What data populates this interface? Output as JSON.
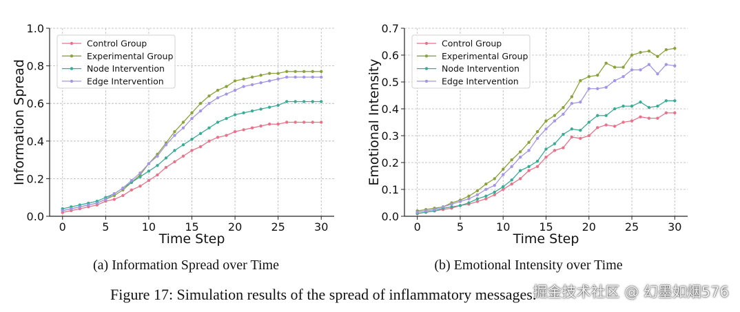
{
  "figure_caption": "Figure 17: Simulation results of the spread of inflammatory messages.",
  "subcaptions": [
    "(a) Information Spread over Time",
    "(b) Emotional Intensity over Time"
  ],
  "watermark": "掘金技术社区 @ 幻墨如烟576",
  "colors": {
    "control": "#e8728a",
    "experimental": "#8aa339",
    "node": "#3aab95",
    "edge": "#a595e6",
    "grid": "#b5b5b5",
    "axis": "#222222"
  },
  "chart_data": [
    {
      "type": "line",
      "title": "",
      "xlabel": "Time Step",
      "ylabel": "Information Spread",
      "xlim": [
        -1.5,
        31.5
      ],
      "ylim": [
        0,
        1.0
      ],
      "xticks": [
        0,
        5,
        10,
        15,
        20,
        25,
        30
      ],
      "xtick_labels": [
        "0",
        "5",
        "10",
        "15",
        "20",
        "25",
        "30"
      ],
      "yticks": [
        0,
        0.2,
        0.4,
        0.6,
        0.8,
        1.0
      ],
      "ytick_labels": [
        "0.0",
        "0.2",
        "0.4",
        "0.6",
        "0.8",
        "1.0"
      ],
      "grid": true,
      "legend_position": "top-left",
      "x": [
        0,
        1,
        2,
        3,
        4,
        5,
        6,
        7,
        8,
        9,
        10,
        11,
        12,
        13,
        14,
        15,
        16,
        17,
        18,
        19,
        20,
        21,
        22,
        23,
        24,
        25,
        26,
        27,
        28,
        29,
        30
      ],
      "series": [
        {
          "name": "Control Group",
          "color_key": "control",
          "values": [
            0.02,
            0.03,
            0.04,
            0.05,
            0.06,
            0.08,
            0.09,
            0.11,
            0.14,
            0.16,
            0.19,
            0.22,
            0.26,
            0.29,
            0.32,
            0.35,
            0.37,
            0.4,
            0.42,
            0.43,
            0.45,
            0.46,
            0.47,
            0.48,
            0.49,
            0.49,
            0.5,
            0.5,
            0.5,
            0.5,
            0.5
          ]
        },
        {
          "name": "Experimental Group",
          "color_key": "experimental",
          "values": [
            0.03,
            0.04,
            0.05,
            0.06,
            0.07,
            0.09,
            0.11,
            0.14,
            0.18,
            0.22,
            0.28,
            0.33,
            0.39,
            0.45,
            0.5,
            0.55,
            0.6,
            0.64,
            0.67,
            0.69,
            0.72,
            0.73,
            0.74,
            0.75,
            0.76,
            0.76,
            0.77,
            0.77,
            0.77,
            0.77,
            0.77
          ]
        },
        {
          "name": "Node Intervention",
          "color_key": "node",
          "values": [
            0.04,
            0.05,
            0.06,
            0.07,
            0.08,
            0.1,
            0.12,
            0.15,
            0.18,
            0.21,
            0.24,
            0.27,
            0.31,
            0.35,
            0.38,
            0.41,
            0.44,
            0.47,
            0.5,
            0.52,
            0.54,
            0.55,
            0.56,
            0.57,
            0.58,
            0.59,
            0.61,
            0.61,
            0.61,
            0.61,
            0.61
          ]
        },
        {
          "name": "Edge Intervention",
          "color_key": "edge",
          "values": [
            0.03,
            0.04,
            0.05,
            0.06,
            0.07,
            0.09,
            0.12,
            0.15,
            0.19,
            0.23,
            0.28,
            0.32,
            0.38,
            0.43,
            0.47,
            0.52,
            0.56,
            0.6,
            0.63,
            0.65,
            0.67,
            0.69,
            0.7,
            0.71,
            0.72,
            0.73,
            0.74,
            0.74,
            0.74,
            0.74,
            0.74
          ]
        }
      ]
    },
    {
      "type": "line",
      "title": "",
      "xlabel": "Time Step",
      "ylabel": "Emotional Intensity",
      "xlim": [
        -1.5,
        31.5
      ],
      "ylim": [
        0,
        0.7
      ],
      "xticks": [
        0,
        5,
        10,
        15,
        20,
        25,
        30
      ],
      "xtick_labels": [
        "0",
        "5",
        "10",
        "15",
        "20",
        "25",
        "30"
      ],
      "yticks": [
        0,
        0.1,
        0.2,
        0.3,
        0.4,
        0.5,
        0.6,
        0.7
      ],
      "ytick_labels": [
        "0.0",
        "0.1",
        "0.2",
        "0.3",
        "0.4",
        "0.5",
        "0.6",
        "0.7"
      ],
      "grid": true,
      "legend_position": "top-left",
      "x": [
        0,
        1,
        2,
        3,
        4,
        5,
        6,
        7,
        8,
        9,
        10,
        11,
        12,
        13,
        14,
        15,
        16,
        17,
        18,
        19,
        20,
        21,
        22,
        23,
        24,
        25,
        26,
        27,
        28,
        29,
        30
      ],
      "series": [
        {
          "name": "Control Group",
          "color_key": "control",
          "values": [
            0.01,
            0.015,
            0.02,
            0.025,
            0.03,
            0.04,
            0.045,
            0.055,
            0.065,
            0.08,
            0.1,
            0.12,
            0.14,
            0.17,
            0.185,
            0.22,
            0.245,
            0.255,
            0.295,
            0.29,
            0.3,
            0.33,
            0.34,
            0.335,
            0.35,
            0.355,
            0.37,
            0.365,
            0.365,
            0.385,
            0.385
          ]
        },
        {
          "name": "Experimental Group",
          "color_key": "experimental",
          "values": [
            0.02,
            0.025,
            0.03,
            0.035,
            0.05,
            0.06,
            0.075,
            0.095,
            0.12,
            0.14,
            0.175,
            0.21,
            0.24,
            0.275,
            0.315,
            0.355,
            0.375,
            0.405,
            0.445,
            0.505,
            0.52,
            0.525,
            0.57,
            0.555,
            0.555,
            0.6,
            0.61,
            0.615,
            0.595,
            0.62,
            0.625
          ]
        },
        {
          "name": "Node Intervention",
          "color_key": "node",
          "values": [
            0.01,
            0.015,
            0.02,
            0.03,
            0.035,
            0.04,
            0.05,
            0.065,
            0.075,
            0.09,
            0.11,
            0.135,
            0.17,
            0.185,
            0.205,
            0.25,
            0.27,
            0.305,
            0.325,
            0.32,
            0.35,
            0.375,
            0.375,
            0.4,
            0.41,
            0.41,
            0.425,
            0.405,
            0.41,
            0.43,
            0.43
          ]
        },
        {
          "name": "Edge Intervention",
          "color_key": "edge",
          "values": [
            0.015,
            0.02,
            0.025,
            0.035,
            0.045,
            0.055,
            0.065,
            0.08,
            0.1,
            0.115,
            0.155,
            0.185,
            0.22,
            0.245,
            0.29,
            0.325,
            0.355,
            0.38,
            0.42,
            0.425,
            0.475,
            0.475,
            0.48,
            0.505,
            0.52,
            0.545,
            0.545,
            0.565,
            0.53,
            0.565,
            0.56
          ]
        }
      ]
    }
  ]
}
